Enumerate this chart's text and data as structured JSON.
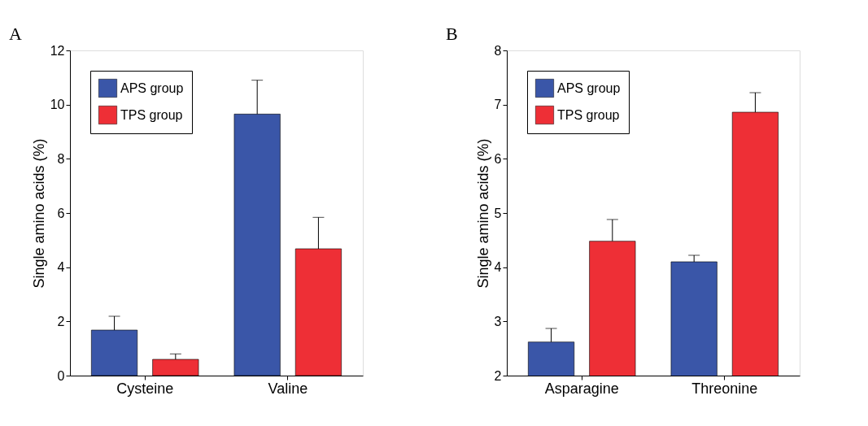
{
  "chart_data": [
    {
      "type": "bar",
      "categories": [
        "Cysteine",
        "Valine"
      ],
      "ylabel": "Single amino acids  (%)",
      "ylim": [
        0,
        12
      ],
      "yticks": [
        0,
        2,
        4,
        6,
        8,
        10,
        12
      ],
      "grid": false,
      "legend": "top left",
      "annotations": [
        "A"
      ],
      "series": [
        {
          "name": "APS group",
          "color": "#3a56a8",
          "values": [
            1.68,
            9.65
          ],
          "errors": [
            [
              1.68,
              2.19
            ],
            [
              9.65,
              10.9
            ]
          ]
        },
        {
          "name": "TPS group",
          "color": "#ee2f36",
          "values": [
            0.6,
            4.68
          ],
          "errors": [
            [
              0.6,
              0.8
            ],
            [
              4.68,
              5.84
            ]
          ]
        }
      ]
    },
    {
      "type": "bar",
      "categories": [
        "Asparagine",
        "Threonine"
      ],
      "ylabel": "Single amino acids  (%)",
      "ylim": [
        2,
        8
      ],
      "yticks": [
        2,
        3,
        4,
        5,
        6,
        7,
        8
      ],
      "grid": false,
      "legend": "top left",
      "annotations": [
        "B"
      ],
      "series": [
        {
          "name": "APS group",
          "color": "#3a56a8",
          "values": [
            2.62,
            4.1
          ],
          "errors": [
            [
              2.62,
              2.87
            ],
            [
              4.1,
              4.22
            ]
          ]
        },
        {
          "name": "TPS group",
          "color": "#ee2f36",
          "values": [
            4.48,
            6.86
          ],
          "errors": [
            [
              4.48,
              4.88
            ],
            [
              6.86,
              7.22
            ]
          ]
        }
      ]
    }
  ]
}
